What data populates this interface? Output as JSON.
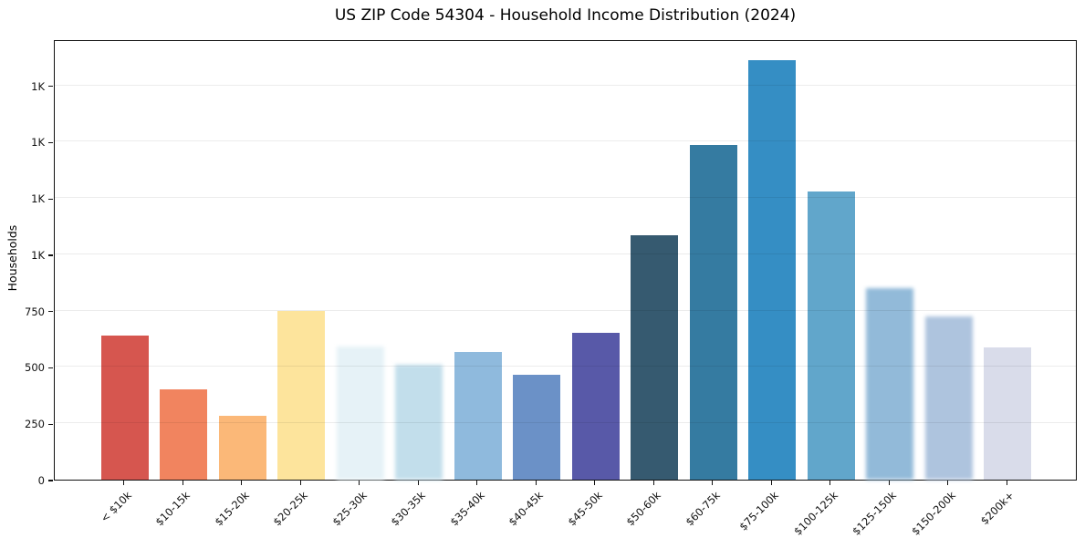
{
  "chart_data": {
    "type": "bar",
    "title": "US ZIP Code 54304 - Household Income Distribution (2024)",
    "xlabel": "",
    "ylabel": "Households",
    "categories": [
      "< $10k",
      "$10-15k",
      "$15-20k",
      "$20-25k",
      "$25-30k",
      "$30-35k",
      "$35-40k",
      "$40-45k",
      "$45-50k",
      "$50-60k",
      "$60-75k",
      "$75-100k",
      "$100-125k",
      "$125-150k",
      "$150-200k",
      "$200k+"
    ],
    "values": [
      640,
      400,
      285,
      750,
      590,
      510,
      565,
      465,
      650,
      1085,
      1485,
      1860,
      1280,
      850,
      725,
      585
    ],
    "bar_colors": [
      "#d6564f",
      "#f1845f",
      "#fbb878",
      "#fde49c",
      "#e6f2f7",
      "#c2deeb",
      "#8fbadd",
      "#6b91c7",
      "#5859a8",
      "#365a70",
      "#357ba1",
      "#358ec4",
      "#61a6cb",
      "#92bad9",
      "#aec4de",
      "#d9dcea"
    ],
    "soft_bars": [
      false,
      false,
      false,
      false,
      true,
      true,
      false,
      false,
      false,
      false,
      false,
      false,
      false,
      true,
      true,
      false
    ],
    "y_ticks": [
      {
        "value": 0,
        "label": "0"
      },
      {
        "value": 250,
        "label": "250"
      },
      {
        "value": 500,
        "label": "500"
      },
      {
        "value": 750,
        "label": "750"
      },
      {
        "value": 1000,
        "label": "1K"
      },
      {
        "value": 1250,
        "label": "1K"
      },
      {
        "value": 1500,
        "label": "1K"
      },
      {
        "value": 1750,
        "label": "1K"
      }
    ],
    "ylim": [
      0,
      1955
    ],
    "grid": "horizontal",
    "legend": "none",
    "colors": {
      "background": "#ffffff",
      "spine": "#111111",
      "grid": "#ececec",
      "text": "#111111"
    }
  }
}
